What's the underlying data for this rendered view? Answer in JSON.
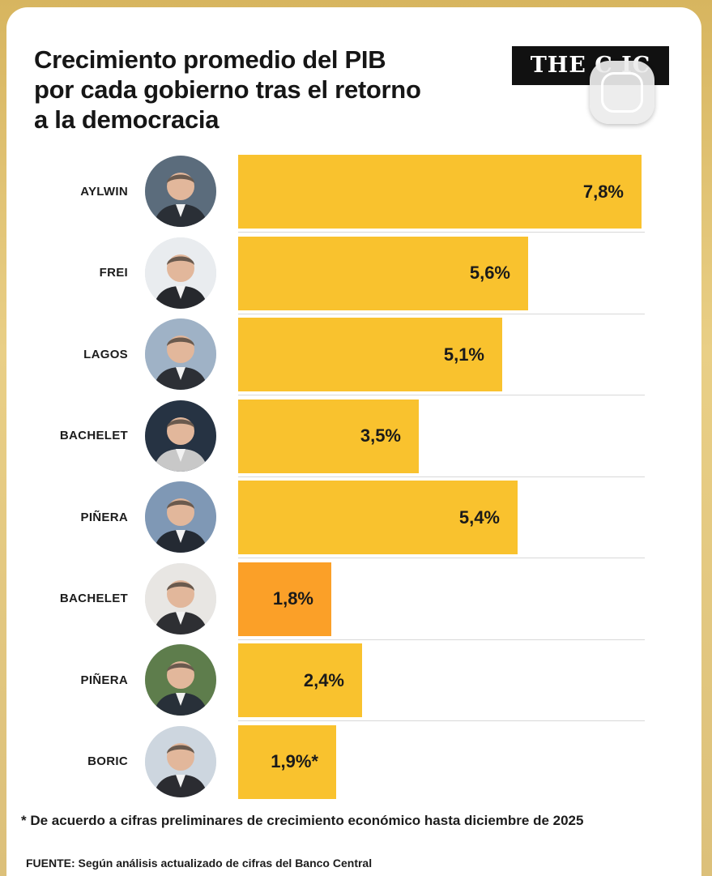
{
  "header": {
    "title_lines": [
      "Crecimiento promedio del PIB",
      "por cada gobierno tras el retorno",
      "a la democracia"
    ],
    "logo_text": "THE C    IC"
  },
  "colors": {
    "bar": "#f9c22e",
    "bar_highlight": "#fba028",
    "divider": "#d8d8d8"
  },
  "chart_data": {
    "type": "bar",
    "orientation": "horizontal",
    "categories": [
      "AYLWIN",
      "FREI",
      "LAGOS",
      "BACHELET",
      "PIÑERA",
      "BACHELET",
      "PIÑERA",
      "BORIC"
    ],
    "values": [
      7.8,
      5.6,
      5.1,
      3.5,
      5.4,
      1.8,
      2.4,
      1.9
    ],
    "value_labels": [
      "7,8%",
      "5,6%",
      "5,1%",
      "3,5%",
      "5,4%",
      "1,8%",
      "2,4%",
      "1,9%*"
    ],
    "highlighted_index": 5,
    "xlim": [
      0,
      7.8
    ],
    "grid": false,
    "legend": "none"
  },
  "footer": {
    "footnote": "* De acuerdo a cifras preliminares de crecimiento económico hasta diciembre de 2025",
    "source": "FUENTE: Según análisis actualizado de cifras del Banco Central"
  }
}
